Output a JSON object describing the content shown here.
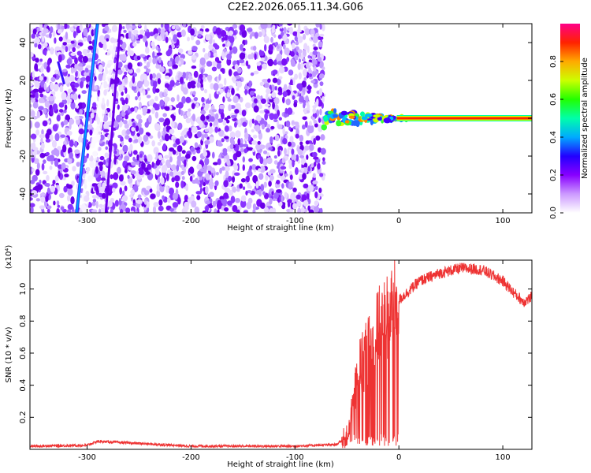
{
  "title": "C2E2.2026.065.11.34.G06",
  "chart_data": [
    {
      "type": "heatmap",
      "xlabel": "Height of straight line (km)",
      "ylabel": "Frequency (Hz)",
      "xlim": [
        -355,
        128
      ],
      "ylim": [
        -50,
        50
      ],
      "xticks": [
        -300,
        -200,
        -100,
        0,
        100
      ],
      "yticks": [
        -40,
        -20,
        0,
        20,
        40
      ],
      "colorbar": {
        "label": "Normalized spectral amplitude",
        "range": [
          0,
          1
        ],
        "ticks": [
          0.0,
          0.2,
          0.4,
          0.6,
          0.8
        ],
        "colors": [
          "#ffffff",
          "#cc99ff",
          "#8800ff",
          "#2200ff",
          "#00aaff",
          "#00ffaa",
          "#22ff00",
          "#ccff00",
          "#ffaa00",
          "#ff2200",
          "#ff0088"
        ]
      },
      "features": {
        "noise_region_x": [
          -355,
          -72
        ],
        "steep_streak_x_at_ymin_ymax": [
          -310,
          -290
        ],
        "second_streak_x_at_ymin_ymax": [
          -282,
          -268
        ],
        "carrier_frequency": 0,
        "carrier_start_x": -72
      }
    },
    {
      "type": "line",
      "xlabel": "Height of straight line (km)",
      "ylabel": "SNR (10 * v/v)",
      "scale_note": "(x10⁴)",
      "xlim": [
        -355,
        128
      ],
      "ylim": [
        0,
        1.18
      ],
      "xticks": [
        -300,
        -200,
        -100,
        0,
        100
      ],
      "yticks": [
        0.2,
        0.4,
        0.6,
        0.8,
        1.0
      ],
      "line_color": "#ee3333",
      "x": [
        -355,
        -300,
        -290,
        -200,
        -100,
        -60,
        -50,
        -45,
        -40,
        -35,
        -30,
        -20,
        -10,
        0,
        20,
        40,
        60,
        80,
        100,
        110,
        120,
        128
      ],
      "y": [
        0.02,
        0.025,
        0.05,
        0.02,
        0.02,
        0.03,
        0.08,
        0.25,
        0.45,
        0.55,
        0.6,
        0.75,
        0.85,
        0.93,
        1.05,
        1.1,
        1.13,
        1.12,
        1.05,
        0.98,
        0.92,
        0.95
      ]
    }
  ]
}
